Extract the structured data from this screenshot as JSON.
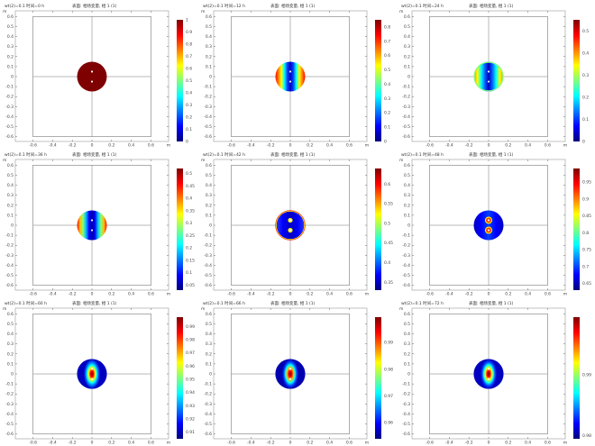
{
  "chart_data": [
    {
      "type": "heatmap",
      "title_left": "wt(2)=0.1 时间=0 h",
      "title_right": "表面: 相场变量, 相 1 (1)",
      "xticks": [
        "-0.6",
        "-0.4",
        "-0.2",
        "0",
        "0.2",
        "0.4",
        "0.6"
      ],
      "yticks": [
        "0.6",
        "0.5",
        "0.4",
        "0.3",
        "0.2",
        "0.1",
        "0",
        "-0.1",
        "-0.2",
        "-0.3",
        "-0.4",
        "-0.5",
        "-0.6"
      ],
      "unit": "m",
      "xlim": [
        -0.6,
        0.6
      ],
      "ylim": [
        -0.6,
        0.6
      ],
      "colorbar_ticks": [
        "1",
        "0.9",
        "0.8",
        "0.7",
        "0.6",
        "0.5",
        "0.4",
        "0.3",
        "0.2",
        "0.1",
        "0"
      ],
      "colorbar_range": [
        0,
        1
      ],
      "colorbar_ticks_visible": [
        1,
        0.9,
        0.8,
        0.7,
        0.6,
        0.5,
        0.4,
        0.3,
        0.2,
        0.1,
        0
      ]
    },
    {
      "type": "heatmap",
      "title_left": "wt(2)=0.1 时间=12 h",
      "title_right": "表面: 相场变量, 相 1 (1)",
      "colorbar_ticks": [
        "0.8",
        "0.7",
        "0.6",
        "0.5",
        "0.4",
        "0.3",
        "0.2",
        "0.1",
        "0"
      ],
      "colorbar_range": [
        0,
        0.85
      ]
    },
    {
      "type": "heatmap",
      "title_left": "wt(2)=0.1 时间=24 h",
      "title_right": "表面: 相场变量, 相 1 (1)",
      "colorbar_ticks": [
        "0.5",
        "0.4",
        "0.3",
        "0.2",
        "0.1",
        "0"
      ],
      "colorbar_range": [
        0,
        0.55
      ]
    },
    {
      "type": "heatmap",
      "title_left": "wt(2)=0.1 时间=36 h",
      "title_right": "表面: 相场变量, 相 1 (1)",
      "colorbar_ticks": [
        "0.5",
        "0.45",
        "0.4",
        "0.35",
        "0.3",
        "0.25",
        "0.2",
        "0.15",
        "0.1",
        "0.05"
      ],
      "colorbar_range": [
        0.03,
        0.52
      ]
    },
    {
      "type": "heatmap",
      "title_left": "wt(2)=0.1 时间=42 h",
      "title_right": "表面: 相场变量, 相 1 (1)",
      "colorbar_ticks": [
        "0.6",
        "0.55",
        "0.5",
        "0.45",
        "0.4",
        "0.35"
      ],
      "colorbar_range": [
        0.33,
        0.64
      ]
    },
    {
      "type": "heatmap",
      "title_left": "wt(2)=0.1 时间=48 h",
      "title_right": "表面: 相场变量, 相 1 (1)",
      "colorbar_ticks": [
        "0.95",
        "0.9",
        "0.85",
        "0.8",
        "0.75",
        "0.7",
        "0.65"
      ],
      "colorbar_range": [
        0.63,
        0.99
      ]
    },
    {
      "type": "heatmap",
      "title_left": "wt(2)=0.1 时间=60 h",
      "title_right": "表面: 相场变量, 相 1 (1)",
      "colorbar_ticks": [
        "0.99",
        "0.98",
        "0.97",
        "0.96",
        "0.95",
        "0.94",
        "0.93",
        "0.92",
        "0.91"
      ],
      "colorbar_range": [
        0.905,
        0.997
      ]
    },
    {
      "type": "heatmap",
      "title_left": "wt(2)=0.1 时间=66 h",
      "title_right": "表面: 相场变量, 相 1 (1)",
      "colorbar_ticks": [
        "0.99",
        "0.98",
        "0.97",
        "0.96"
      ],
      "colorbar_range": [
        0.954,
        0.9995
      ]
    },
    {
      "type": "heatmap",
      "title_left": "wt(2)=0.1 时间=72 h",
      "title_right": "表面: 相场变量, 相 1 (1)",
      "colorbar_ticks": [
        "0.99",
        "0.98"
      ],
      "colorbar_range": [
        0.9795,
        0.9995
      ]
    }
  ],
  "axes": {
    "xticks": [
      "-0.6",
      "-0.4",
      "-0.2",
      "0",
      "0.2",
      "0.4",
      "0.6"
    ],
    "yticks": [
      "0.6",
      "0.5",
      "0.4",
      "0.3",
      "0.2",
      "0.1",
      "0",
      "-0.1",
      "-0.2",
      "-0.3",
      "-0.4",
      "-0.5",
      "-0.6"
    ],
    "unit": "m"
  }
}
